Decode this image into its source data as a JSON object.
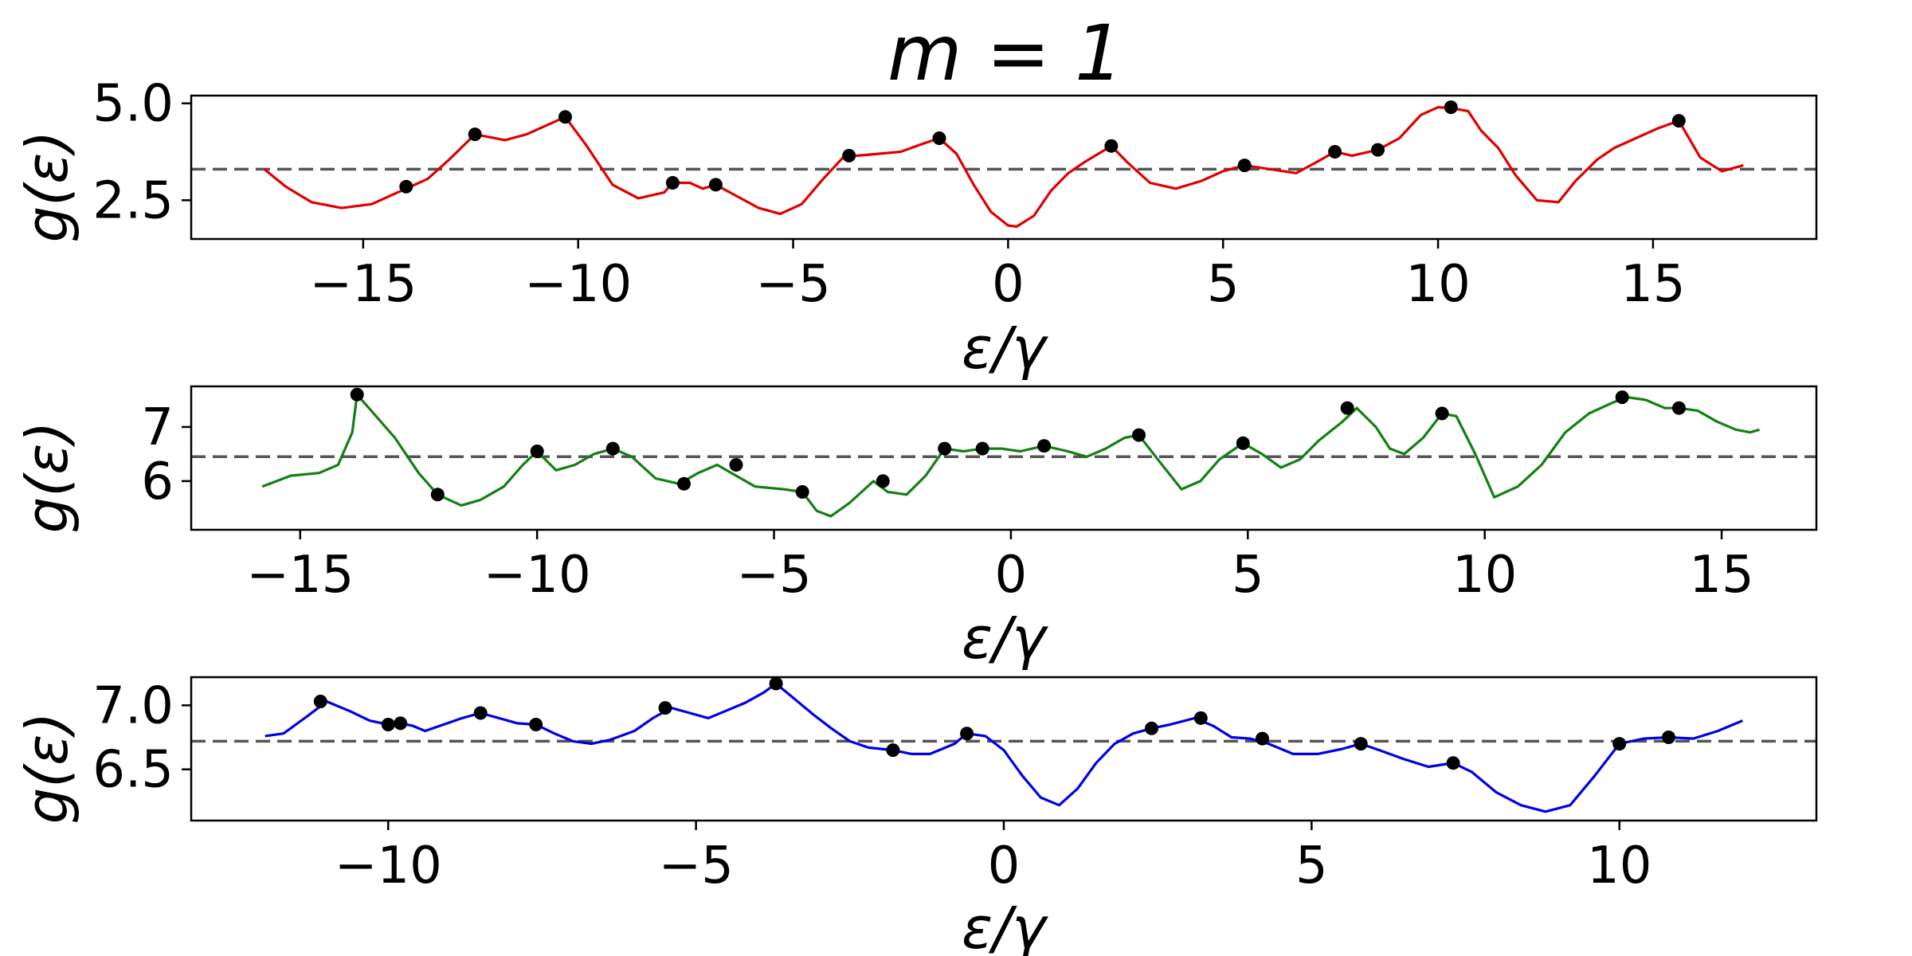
{
  "figure": {
    "title": "m = 1"
  },
  "chart_data": [
    {
      "type": "line",
      "xlabel": "ε/γ",
      "ylabel": "g(ε)",
      "xlim": [
        -19.0,
        18.8
      ],
      "ylim": [
        1.5,
        5.2
      ],
      "xticks": [
        -15,
        -10,
        -5,
        0,
        5,
        10,
        15
      ],
      "xtick_labels": [
        "−15",
        "−10",
        "−5",
        "0",
        "5",
        "10",
        "15"
      ],
      "yticks": [
        2.5,
        5.0
      ],
      "ytick_labels": [
        "2.5",
        "5.0"
      ],
      "reference_line": 3.3,
      "grid": false,
      "series": [
        {
          "color": "#e00000",
          "x": [
            -17.3,
            -16.8,
            -16.2,
            -15.5,
            -14.8,
            -14.2,
            -13.9,
            -13.5,
            -13.0,
            -12.4,
            -11.7,
            -11.2,
            -10.8,
            -10.3,
            -9.8,
            -9.2,
            -8.6,
            -8.0,
            -7.8,
            -7.4,
            -7.1,
            -6.8,
            -6.3,
            -5.8,
            -5.3,
            -4.8,
            -4.3,
            -3.8,
            -3.5,
            -3.0,
            -2.5,
            -2.0,
            -1.6,
            -1.2,
            -0.8,
            -0.4,
            0.0,
            0.2,
            0.6,
            1.0,
            1.4,
            1.8,
            2.1,
            2.4,
            2.8,
            3.3,
            3.9,
            4.5,
            5.0,
            5.5,
            6.1,
            6.7,
            7.2,
            7.6,
            8.0,
            8.6,
            9.1,
            9.6,
            10.0,
            10.3,
            10.7,
            11.0,
            11.4,
            11.8,
            12.3,
            12.8,
            13.2,
            13.7,
            14.1,
            14.6,
            15.1,
            15.6,
            16.1,
            16.6,
            17.1
          ],
          "y": [
            3.3,
            2.85,
            2.45,
            2.3,
            2.4,
            2.7,
            2.85,
            3.05,
            3.55,
            4.2,
            4.05,
            4.2,
            4.4,
            4.65,
            3.9,
            2.9,
            2.55,
            2.7,
            2.95,
            2.95,
            2.8,
            2.9,
            2.6,
            2.3,
            2.15,
            2.4,
            3.05,
            3.65,
            3.65,
            3.7,
            3.75,
            3.95,
            4.1,
            3.7,
            2.9,
            2.2,
            1.85,
            1.82,
            2.1,
            2.75,
            3.2,
            3.5,
            3.7,
            3.9,
            3.45,
            2.95,
            2.8,
            3.0,
            3.25,
            3.4,
            3.3,
            3.2,
            3.5,
            3.75,
            3.65,
            3.8,
            4.1,
            4.7,
            4.9,
            4.88,
            4.8,
            4.3,
            3.85,
            3.15,
            2.5,
            2.45,
            3.0,
            3.55,
            3.85,
            4.1,
            4.35,
            4.55,
            3.6,
            3.25,
            3.4
          ]
        }
      ],
      "markers": {
        "x": [
          -14.0,
          -12.4,
          -10.3,
          -7.8,
          -6.8,
          -3.7,
          -1.6,
          2.4,
          5.5,
          7.6,
          8.6,
          10.3,
          15.6
        ],
        "y": [
          2.85,
          4.2,
          4.65,
          2.95,
          2.9,
          3.65,
          4.1,
          3.9,
          3.4,
          3.75,
          3.8,
          4.9,
          4.55
        ]
      }
    },
    {
      "type": "line",
      "xlabel": "ε/γ",
      "ylabel": "g(ε)",
      "xlim": [
        -17.3,
        17.0
      ],
      "ylim": [
        5.1,
        7.75
      ],
      "xticks": [
        -15,
        -10,
        -5,
        0,
        5,
        10,
        15
      ],
      "xtick_labels": [
        "−15",
        "−10",
        "−5",
        "0",
        "5",
        "10",
        "15"
      ],
      "yticks": [
        6,
        7
      ],
      "ytick_labels": [
        "6",
        "7"
      ],
      "reference_line": 6.45,
      "grid": false,
      "series": [
        {
          "color": "#138013",
          "x": [
            -15.8,
            -15.2,
            -14.6,
            -14.2,
            -13.9,
            -13.8,
            -13.5,
            -13.0,
            -12.5,
            -12.1,
            -11.6,
            -11.2,
            -10.7,
            -10.3,
            -10.0,
            -9.6,
            -9.2,
            -8.8,
            -8.4,
            -8.0,
            -7.5,
            -7.0,
            -6.6,
            -6.2,
            -5.8,
            -5.4,
            -4.8,
            -4.4,
            -4.1,
            -3.8,
            -3.4,
            -2.9,
            -2.6,
            -2.2,
            -1.8,
            -1.4,
            -1.0,
            -0.6,
            -0.2,
            0.2,
            0.7,
            1.2,
            1.6,
            2.0,
            2.4,
            2.7,
            3.1,
            3.6,
            4.0,
            4.4,
            4.9,
            5.3,
            5.7,
            6.1,
            6.5,
            7.0,
            7.3,
            7.7,
            8.0,
            8.3,
            8.7,
            9.1,
            9.4,
            9.8,
            10.2,
            10.7,
            11.2,
            11.7,
            12.2,
            12.7,
            13.0,
            13.4,
            13.8,
            14.1,
            14.5,
            14.9,
            15.3,
            15.6,
            15.8
          ],
          "y": [
            5.9,
            6.1,
            6.15,
            6.3,
            6.9,
            7.6,
            7.3,
            6.8,
            6.15,
            5.75,
            5.55,
            5.65,
            5.9,
            6.3,
            6.55,
            6.2,
            6.3,
            6.5,
            6.6,
            6.45,
            6.05,
            5.95,
            6.15,
            6.3,
            6.1,
            5.9,
            5.85,
            5.8,
            5.45,
            5.35,
            5.6,
            6.0,
            5.8,
            5.75,
            6.1,
            6.6,
            6.55,
            6.6,
            6.6,
            6.55,
            6.65,
            6.55,
            6.45,
            6.6,
            6.8,
            6.85,
            6.4,
            5.85,
            6.0,
            6.4,
            6.7,
            6.5,
            6.25,
            6.4,
            6.75,
            7.1,
            7.35,
            7.0,
            6.6,
            6.5,
            6.8,
            7.25,
            7.2,
            6.5,
            5.7,
            5.9,
            6.3,
            6.9,
            7.25,
            7.45,
            7.55,
            7.5,
            7.35,
            7.35,
            7.3,
            7.1,
            6.95,
            6.9,
            6.95
          ]
        }
      ],
      "markers": {
        "x": [
          -13.8,
          -12.1,
          -10.0,
          -8.4,
          -6.9,
          -5.8,
          -4.4,
          -2.7,
          -1.4,
          -0.6,
          0.7,
          2.7,
          4.9,
          7.1,
          9.1,
          12.9,
          14.1
        ],
        "y": [
          7.6,
          5.75,
          6.55,
          6.6,
          5.95,
          6.3,
          5.8,
          6.0,
          6.6,
          6.6,
          6.65,
          6.85,
          6.7,
          7.35,
          7.25,
          7.55,
          7.35
        ]
      }
    },
    {
      "type": "line",
      "xlabel": "ε/γ",
      "ylabel": "g(ε)",
      "xlim": [
        -13.2,
        13.2
      ],
      "ylim": [
        6.1,
        7.22
      ],
      "xticks": [
        -10,
        -5,
        0,
        5,
        10
      ],
      "xtick_labels": [
        "−10",
        "−5",
        "0",
        "5",
        "10"
      ],
      "yticks": [
        6.5,
        7.0
      ],
      "ytick_labels": [
        "6.5",
        "7.0"
      ],
      "reference_line": 6.72,
      "grid": false,
      "series": [
        {
          "color": "#0000e6",
          "x": [
            -12.0,
            -11.7,
            -11.3,
            -11.0,
            -10.6,
            -10.3,
            -10.0,
            -9.8,
            -9.6,
            -9.4,
            -9.1,
            -8.8,
            -8.5,
            -8.2,
            -7.9,
            -7.6,
            -7.3,
            -7.0,
            -6.7,
            -6.4,
            -6.0,
            -5.7,
            -5.4,
            -5.1,
            -4.8,
            -4.5,
            -4.2,
            -3.9,
            -3.7,
            -3.4,
            -3.1,
            -2.8,
            -2.5,
            -2.2,
            -1.8,
            -1.5,
            -1.2,
            -0.8,
            -0.6,
            -0.3,
            0.0,
            0.3,
            0.6,
            0.9,
            1.2,
            1.5,
            1.8,
            2.1,
            2.4,
            2.7,
            3.1,
            3.4,
            3.7,
            4.0,
            4.3,
            4.7,
            5.1,
            5.5,
            5.8,
            6.1,
            6.5,
            6.9,
            7.3,
            7.6,
            8.0,
            8.4,
            8.8,
            9.2,
            9.6,
            10.0,
            10.4,
            10.8,
            11.2,
            11.6,
            12.0
          ],
          "y": [
            6.76,
            6.78,
            6.92,
            7.03,
            6.95,
            6.88,
            6.85,
            6.86,
            6.84,
            6.8,
            6.85,
            6.9,
            6.94,
            6.9,
            6.86,
            6.85,
            6.78,
            6.72,
            6.7,
            6.73,
            6.8,
            6.9,
            6.98,
            6.94,
            6.9,
            6.96,
            7.02,
            7.1,
            7.17,
            7.05,
            6.93,
            6.82,
            6.72,
            6.67,
            6.65,
            6.62,
            6.62,
            6.7,
            6.78,
            6.76,
            6.65,
            6.45,
            6.28,
            6.22,
            6.35,
            6.55,
            6.7,
            6.78,
            6.82,
            6.85,
            6.9,
            6.84,
            6.75,
            6.74,
            6.7,
            6.62,
            6.62,
            6.66,
            6.7,
            6.65,
            6.58,
            6.52,
            6.55,
            6.48,
            6.32,
            6.22,
            6.17,
            6.22,
            6.45,
            6.7,
            6.74,
            6.75,
            6.74,
            6.8,
            6.88
          ]
        }
      ],
      "markers": {
        "x": [
          -11.1,
          -10.0,
          -9.8,
          -8.5,
          -7.6,
          -5.5,
          -3.7,
          -1.8,
          -0.6,
          2.4,
          3.2,
          4.2,
          5.8,
          7.3,
          10.0,
          10.8
        ],
        "y": [
          7.03,
          6.85,
          6.86,
          6.94,
          6.85,
          6.98,
          7.17,
          6.65,
          6.78,
          6.82,
          6.9,
          6.74,
          6.7,
          6.55,
          6.7,
          6.75
        ]
      }
    }
  ]
}
